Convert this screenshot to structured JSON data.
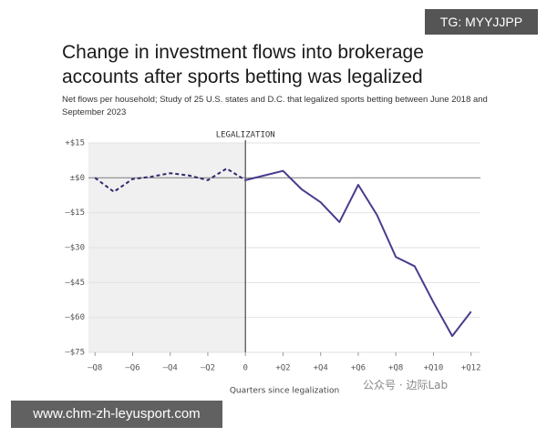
{
  "chart_data": {
    "type": "line",
    "title": "Change in investment flows into brokerage accounts after sports betting was legalized",
    "subtitle": "Net flows per household; Study of 25 U.S. states and D.C. that legalized sports betting between June 2018 and September 2023",
    "x_label": "Quarters since legalization",
    "annotation": "LEGALIZATION",
    "legalization_x": 0,
    "xlim": [
      -8.35,
      12.5
    ],
    "ylim": [
      -75,
      15
    ],
    "xticks": [
      {
        "value": -8,
        "label": "–Q8"
      },
      {
        "value": -6,
        "label": "–Q6"
      },
      {
        "value": -4,
        "label": "–Q4"
      },
      {
        "value": -2,
        "label": "–Q2"
      },
      0,
      {
        "value": 2,
        "label": "+Q2"
      },
      {
        "value": 4,
        "label": "+Q4"
      },
      {
        "value": 6,
        "label": "+Q6"
      },
      {
        "value": 8,
        "label": "+Q8"
      },
      {
        "value": 10,
        "label": "+Q10"
      },
      {
        "value": 12,
        "label": "+Q12"
      }
    ],
    "yticks": [
      {
        "value": 15,
        "label": "+$15"
      },
      {
        "value": 0,
        "label": "±$0"
      },
      {
        "value": -15,
        "label": "–$15"
      },
      {
        "value": -30,
        "label": "–$30"
      },
      {
        "value": -45,
        "label": "–$45"
      },
      {
        "value": -60,
        "label": "–$60"
      },
      {
        "value": -75,
        "label": "–$75"
      }
    ],
    "grid": true,
    "series": [
      {
        "color": "#2e2a6e",
        "dashed": true,
        "x": [
          -8,
          -7,
          -6,
          -5,
          -4,
          -3,
          -2,
          -1,
          0
        ],
        "values": [
          0,
          -6,
          -0.5,
          0.5,
          2,
          1,
          -1,
          4,
          -1
        ]
      },
      {
        "color": "#4b3a8c",
        "dashed": false,
        "x": [
          0,
          1,
          2,
          3,
          4,
          5,
          6,
          7,
          8,
          9,
          10,
          11,
          12
        ],
        "values": [
          -1,
          1,
          3,
          -5,
          -10.5,
          -19,
          -3,
          -16,
          -34,
          -38,
          -53.5,
          -68,
          -57.5
        ]
      }
    ]
  },
  "overlays": {
    "top_tag": "TG: MYYJJPP",
    "bottom_url": "www.chm-zh-leyusport.com",
    "watermark": "公众号 · 边际Lab"
  }
}
